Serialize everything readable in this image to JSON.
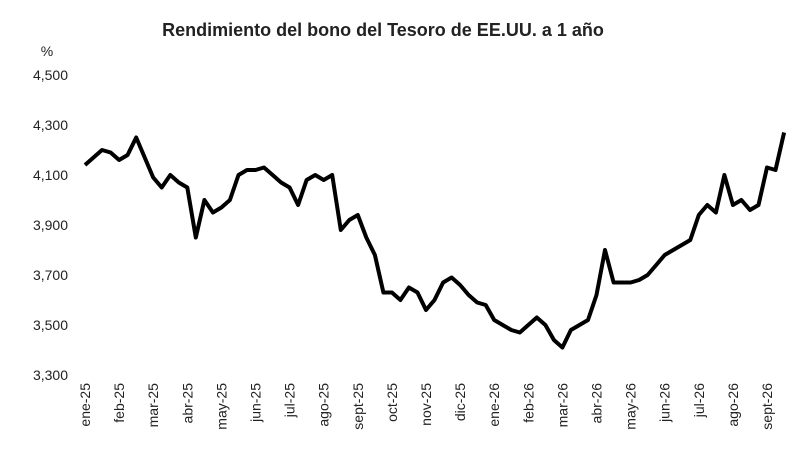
{
  "chart_data": {
    "type": "line",
    "title": "Rendimiento del bono del Tesoro de EE.UU. a 1 año",
    "y_label": "%",
    "categories": [
      "ene-25",
      null,
      null,
      null,
      "feb-25",
      null,
      null,
      null,
      "mar-25",
      null,
      null,
      null,
      "abr-25",
      null,
      null,
      null,
      "may-25",
      null,
      null,
      null,
      "jun-25",
      null,
      null,
      null,
      "jul-25",
      null,
      null,
      null,
      "ago-25",
      null,
      null,
      null,
      "sept-25",
      null,
      null,
      null,
      "oct-25",
      null,
      null,
      null,
      "nov-25",
      null,
      null,
      null,
      "dic-25",
      null,
      null,
      null,
      "ene-26",
      null,
      null,
      null,
      "feb-26",
      null,
      null,
      null,
      "mar-26",
      null,
      null,
      null,
      "abr-26",
      null,
      null,
      null,
      "may-26",
      null,
      null,
      null,
      "jun-26",
      null,
      null,
      null,
      "jul-26",
      null,
      null,
      null,
      "ago-26",
      null,
      null,
      null,
      "sept-26",
      null,
      null
    ],
    "series": [
      {
        "name": "Rendimiento",
        "color": "#000000",
        "values": [
          4.14,
          4.17,
          4.2,
          4.19,
          4.16,
          4.18,
          4.25,
          4.17,
          4.09,
          4.05,
          4.1,
          4.07,
          4.05,
          3.85,
          4.0,
          3.95,
          3.97,
          4.0,
          4.1,
          4.12,
          4.12,
          4.13,
          4.1,
          4.07,
          4.05,
          3.98,
          4.08,
          4.1,
          4.08,
          4.1,
          3.88,
          3.92,
          3.94,
          3.85,
          3.78,
          3.63,
          3.63,
          3.6,
          3.65,
          3.63,
          3.56,
          3.6,
          3.67,
          3.69,
          3.66,
          3.62,
          3.59,
          3.58,
          3.52,
          3.5,
          3.48,
          3.47,
          3.5,
          3.53,
          3.5,
          3.44,
          3.41,
          3.48,
          3.5,
          3.52,
          3.62,
          3.8,
          3.67,
          3.67,
          3.67,
          3.68,
          3.7,
          3.74,
          3.78,
          3.8,
          3.82,
          3.84,
          3.94,
          3.98,
          3.95,
          4.1,
          3.98,
          4.0,
          3.96,
          3.98,
          4.13,
          4.12,
          4.27
        ]
      }
    ],
    "ylim": [
      3.3,
      4.5
    ],
    "yticks": [
      {
        "value": 3.3,
        "label": "3,300"
      },
      {
        "value": 3.5,
        "label": "3,500"
      },
      {
        "value": 3.7,
        "label": "3,700"
      },
      {
        "value": 3.9,
        "label": "3,900"
      },
      {
        "value": 4.1,
        "label": "4,100"
      },
      {
        "value": 4.3,
        "label": "4,300"
      },
      {
        "value": 4.5,
        "label": "4,500"
      }
    ],
    "grid": false
  }
}
